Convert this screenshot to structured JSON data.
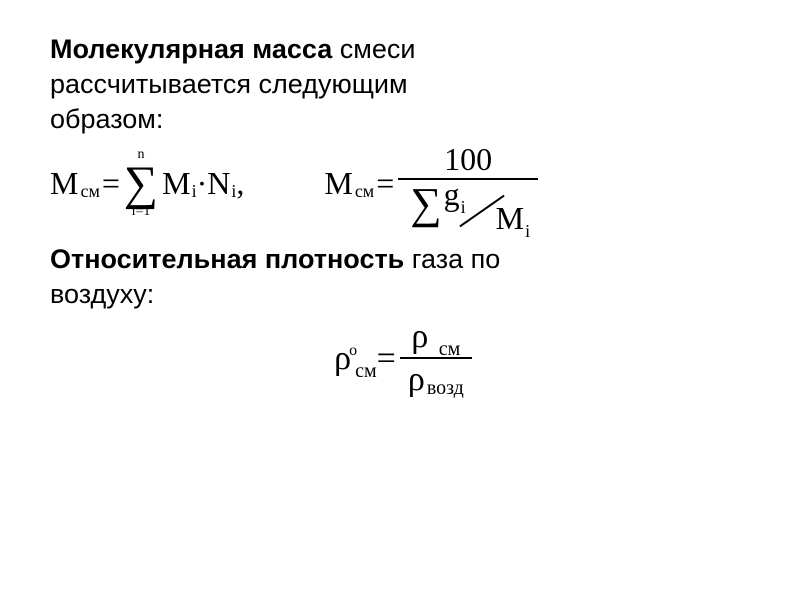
{
  "heading1": {
    "bold": "Молекулярная масса",
    "rest1": " смеси",
    "rest2": "рассчитывается следующим",
    "rest3": "образом:"
  },
  "formula1": {
    "M": "M",
    "sub_cm": "см",
    "eq": " = ",
    "sigma": "∑",
    "sum_top": "n",
    "sum_bottom": "i=1",
    "Mi": "M",
    "sub_i": "i",
    "dot": " · ",
    "Ni": "N",
    "comma": ","
  },
  "formula2": {
    "M": "M",
    "sub_cm": "см",
    "eq": " = ",
    "numerator": "100",
    "sigma": "∑",
    "g": "g",
    "sub_i_g": "i",
    "Mi": "M",
    "sub_i_m": "i"
  },
  "heading2": {
    "bold": "Относительная плотность",
    "rest1": " газа по",
    "rest2": "воздуху:"
  },
  "formula3": {
    "rho": "ρ",
    "sup_o": "о",
    "sub_cm": "см",
    "eq": " = ",
    "sub_num": "см",
    "sub_den": "возд"
  },
  "style": {
    "background": "#ffffff",
    "text_color": "#000000",
    "heading_fontsize": 27,
    "formula_fontsize": 32,
    "density_fontsize": 34
  }
}
